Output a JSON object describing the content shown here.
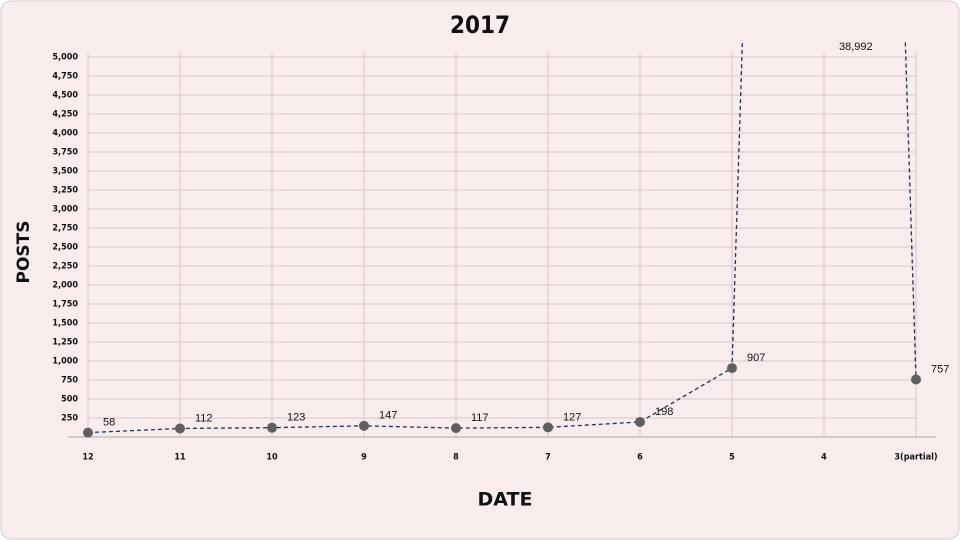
{
  "chart_data": {
    "type": "line",
    "title": "2017",
    "x_label": "DATE",
    "y_label": "POSTS",
    "categories": [
      "12",
      "11",
      "10",
      "9",
      "8",
      "7",
      "6",
      "5",
      "4",
      "3(partial)"
    ],
    "values": [
      58,
      112,
      123,
      147,
      117,
      127,
      198,
      907,
      38992,
      757
    ],
    "value_labels": [
      "58",
      "112",
      "123",
      "147",
      "117",
      "127",
      "198",
      "907",
      "38,992",
      "757"
    ],
    "color": "#1f3355",
    "marker_color": "#5f5f5f",
    "ylim": [
      0,
      5000
    ],
    "yticks": [
      250,
      500,
      750,
      {
        "value": 1000,
        "label": "1,000"
      },
      {
        "value": 1250,
        "label": "1,250"
      },
      {
        "value": 1500,
        "label": "1,500"
      },
      {
        "value": 1750,
        "label": "1,750"
      },
      {
        "value": 2000,
        "label": "2,000"
      },
      {
        "value": 2250,
        "label": "2,250"
      },
      {
        "value": 2500,
        "label": "2,500"
      },
      {
        "value": 2750,
        "label": "2,750"
      },
      {
        "value": 3000,
        "label": "3,000"
      },
      {
        "value": 3250,
        "label": "3,250"
      },
      {
        "value": 3500,
        "label": "3,500"
      },
      {
        "value": 3750,
        "label": "3,750"
      },
      {
        "value": 4000,
        "label": "4,000"
      },
      {
        "value": 4250,
        "label": "4,250"
      },
      {
        "value": 4500,
        "label": "4,500"
      },
      {
        "value": 4750,
        "label": "4,750"
      },
      {
        "value": 5000,
        "label": "5,000"
      }
    ],
    "grid": true
  }
}
